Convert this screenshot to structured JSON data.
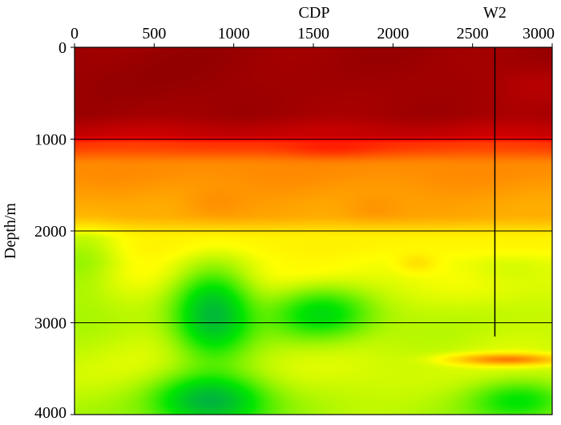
{
  "chart_data": {
    "type": "heatmap",
    "title": "",
    "xlabel": "CDP",
    "ylabel": "Depth/m",
    "x_axis_position": "top",
    "xlim": [
      0,
      3000
    ],
    "ylim": [
      0,
      4000
    ],
    "y_inverted": true,
    "x_ticks": [
      0,
      500,
      1000,
      1500,
      2000,
      2500,
      3000
    ],
    "y_ticks": [
      0,
      1000,
      2000,
      3000,
      4000
    ],
    "horizontal_gridlines": [
      1000,
      2000,
      3000
    ],
    "colormap": [
      "#8b0000",
      "#ff0000",
      "#ff8c00",
      "#ffff00",
      "#00e600",
      "#009a60"
    ],
    "well": {
      "name": "W2",
      "cdp": 2640,
      "depth_top": 0,
      "depth_bottom": 3150
    },
    "field": {
      "base_by_depth": [
        {
          "depth": 0,
          "value": 0.03
        },
        {
          "depth": 700,
          "value": 0.04
        },
        {
          "depth": 950,
          "value": 0.1
        },
        {
          "depth": 1050,
          "value": 0.28
        },
        {
          "depth": 1300,
          "value": 0.4
        },
        {
          "depth": 1800,
          "value": 0.45
        },
        {
          "depth": 2100,
          "value": 0.58
        },
        {
          "depth": 2400,
          "value": 0.6
        },
        {
          "depth": 3000,
          "value": 0.65
        },
        {
          "depth": 3500,
          "value": 0.63
        },
        {
          "depth": 4000,
          "value": 0.66
        }
      ],
      "anomalies": [
        {
          "cdp": 450,
          "depth": 400,
          "rx": 500,
          "ry": 350,
          "amp": -0.02
        },
        {
          "cdp": 2900,
          "depth": 400,
          "rx": 250,
          "ry": 200,
          "amp": 0.04
        },
        {
          "cdp": 1600,
          "depth": 1100,
          "rx": 300,
          "ry": 120,
          "amp": -0.05
        },
        {
          "cdp": 870,
          "depth": 1700,
          "rx": 200,
          "ry": 160,
          "amp": -0.04
        },
        {
          "cdp": 1870,
          "depth": 1750,
          "rx": 200,
          "ry": 160,
          "amp": -0.04
        },
        {
          "cdp": 50,
          "depth": 2300,
          "rx": 250,
          "ry": 500,
          "amp": 0.08
        },
        {
          "cdp": 870,
          "depth": 2900,
          "rx": 230,
          "ry": 450,
          "amp": 0.27
        },
        {
          "cdp": 1550,
          "depth": 2900,
          "rx": 300,
          "ry": 280,
          "amp": 0.18
        },
        {
          "cdp": 850,
          "depth": 3850,
          "rx": 330,
          "ry": 280,
          "amp": 0.28
        },
        {
          "cdp": 2800,
          "depth": 3850,
          "rx": 300,
          "ry": 220,
          "amp": 0.15
        },
        {
          "cdp": 2720,
          "depth": 3400,
          "rx": 330,
          "ry": 60,
          "amp": -0.25
        },
        {
          "cdp": 2150,
          "depth": 2350,
          "rx": 120,
          "ry": 100,
          "amp": -0.06
        },
        {
          "cdp": 2700,
          "depth": 2400,
          "rx": 300,
          "ry": 200,
          "amp": 0.04
        }
      ]
    }
  }
}
